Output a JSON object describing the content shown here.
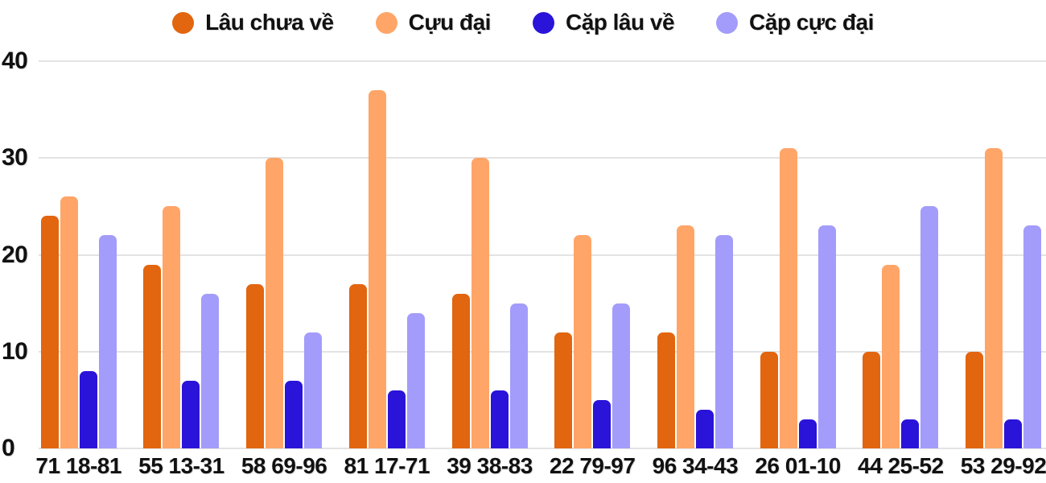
{
  "chart_data": {
    "type": "bar",
    "title": "",
    "categories": [
      "71 18-81",
      "55 13-31",
      "58 69-96",
      "81 17-71",
      "39 38-83",
      "22 79-97",
      "96 34-43",
      "26 01-10",
      "44 25-52",
      "53 29-92"
    ],
    "series": [
      {
        "name": "Lâu chưa về",
        "color": "#e2650f",
        "values": [
          24,
          19,
          17,
          17,
          16,
          12,
          12,
          10,
          10,
          10
        ]
      },
      {
        "name": "Cựu đại",
        "color": "#ffa568",
        "values": [
          26,
          25,
          30,
          37,
          30,
          22,
          23,
          31,
          19,
          31
        ]
      },
      {
        "name": "Cặp lâu về",
        "color": "#2a14d9",
        "values": [
          8,
          7,
          7,
          6,
          6,
          5,
          4,
          3,
          3,
          3
        ]
      },
      {
        "name": "Cặp cực đại",
        "color": "#a39cfa",
        "values": [
          22,
          16,
          12,
          14,
          15,
          15,
          22,
          23,
          25,
          23
        ]
      }
    ],
    "ylim": [
      0,
      40
    ],
    "yticks": [
      0,
      10,
      20,
      30,
      40
    ],
    "grid": true,
    "legend_position": "top",
    "bar_corner_radius_px": 7
  },
  "colors": {
    "background": "#ffffff",
    "grid": "#e3e3e3",
    "text": "#111111"
  }
}
